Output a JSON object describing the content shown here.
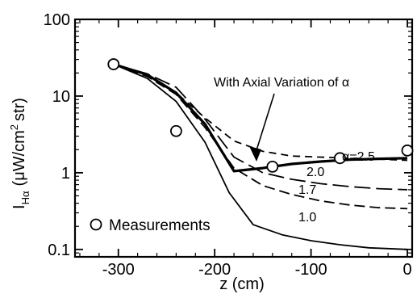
{
  "chart_data": {
    "type": "line",
    "title": "",
    "xlabel": "z (cm)",
    "ylabel_parts": {
      "I": "I",
      "sub": "Hα",
      "open": "(",
      "unit_main": "μW/cm",
      "unit_sup": "2",
      "unit_tail": "str)"
    },
    "x_scale": "linear",
    "y_scale": "log",
    "xlim": [
      -345,
      5
    ],
    "ylim": [
      0.08,
      100
    ],
    "x_ticks": [
      -300,
      -200,
      -100,
      0
    ],
    "x_tick_labels": [
      "-300",
      "-200",
      "-100",
      "0"
    ],
    "y_ticks": [
      0.1,
      1,
      10,
      100
    ],
    "y_tick_labels": [
      "0.1",
      "1",
      "10",
      "100"
    ],
    "grid": false,
    "legend": {
      "placement": "bottom-left",
      "marker": "open-circle",
      "label": "Measurements"
    },
    "annotation": {
      "text": "With Axial Variation of α",
      "arrow_to": [
        -155,
        1.15
      ]
    },
    "measurements": {
      "name": "Measurements",
      "x": [
        -305,
        -240,
        -140,
        -70,
        0
      ],
      "y": [
        26,
        3.5,
        1.2,
        1.55,
        1.95
      ]
    },
    "series": [
      {
        "label": "α=2.5",
        "dash": "short",
        "x": [
          -305,
          -270,
          -240,
          -210,
          -180,
          -150,
          -120,
          -90,
          -60,
          -30,
          0
        ],
        "y": [
          26,
          19,
          11,
          5.2,
          2.6,
          1.9,
          1.65,
          1.6,
          1.55,
          1.5,
          1.45
        ]
      },
      {
        "label": "2.0",
        "dash": "long",
        "x": [
          -305,
          -270,
          -240,
          -210,
          -180,
          -150,
          -120,
          -90,
          -60,
          -30,
          0
        ],
        "y": [
          26,
          19.5,
          13,
          5.0,
          1.6,
          1.0,
          0.82,
          0.72,
          0.66,
          0.62,
          0.6
        ]
      },
      {
        "label": "1.7",
        "dash": "medium",
        "x": [
          -305,
          -270,
          -240,
          -210,
          -180,
          -150,
          -120,
          -90,
          -60,
          -30,
          0
        ],
        "y": [
          26,
          18,
          10.5,
          3.9,
          1.15,
          0.68,
          0.52,
          0.43,
          0.38,
          0.35,
          0.34
        ]
      },
      {
        "label": "1.0",
        "dash": "solid",
        "x": [
          -305,
          -270,
          -240,
          -210,
          -185,
          -160,
          -130,
          -100,
          -70,
          -40,
          0
        ],
        "y": [
          26,
          17,
          8.5,
          2.5,
          0.55,
          0.21,
          0.155,
          0.13,
          0.115,
          0.105,
          0.1
        ]
      },
      {
        "label": "",
        "dash": "solid-bold",
        "x": [
          -305,
          -270,
          -240,
          -210,
          -180,
          -150,
          -120,
          -90,
          -60,
          -30,
          0
        ],
        "y": [
          26,
          19,
          11,
          4.3,
          1.05,
          1.15,
          1.3,
          1.4,
          1.48,
          1.52,
          1.55
        ]
      }
    ]
  }
}
